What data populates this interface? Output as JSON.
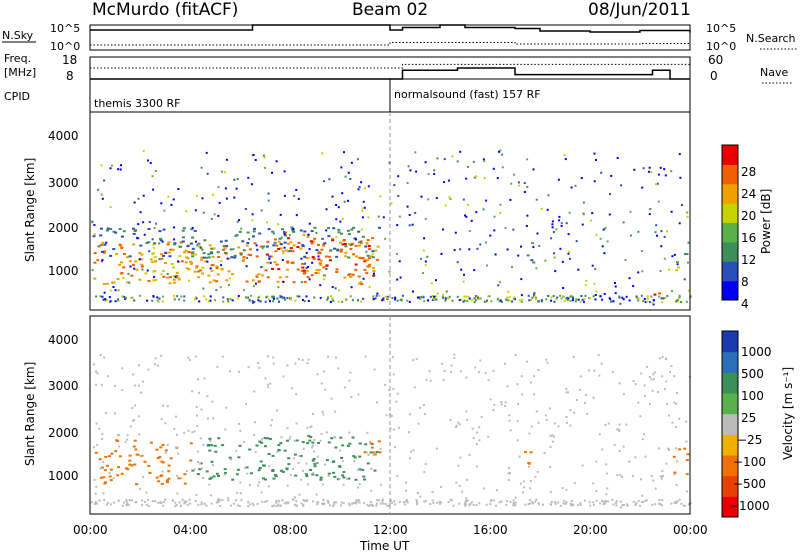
{
  "header": {
    "station": "McMurdo (fitACF)",
    "beam": "Beam 02",
    "date": "08/Jun/2011"
  },
  "top_panels": {
    "nsky_label": "N.Sky",
    "nsky_ticks": [
      "10^5",
      "10^0"
    ],
    "nsearch_label": "N.Search",
    "nsearch_ticks": [
      "10^5",
      "10^0"
    ],
    "freq_label_1": "Freq.",
    "freq_label_2": "[MHz]",
    "freq_ticks": [
      "18",
      "8"
    ],
    "nave_label": "Nave",
    "nave_ticks": [
      "60",
      "0"
    ],
    "cpid_label": "CPID",
    "cpid_modes": [
      {
        "label": "themis 3300 RF",
        "start_hour": 0
      },
      {
        "label": "normalsound (fast) 157 RF",
        "start_hour": 12
      }
    ]
  },
  "axes": {
    "ylabel": "Slant Range [km]",
    "yticks": [
      "4000",
      "3000",
      "2000",
      "1000"
    ],
    "xticks": [
      "00:00",
      "04:00",
      "08:00",
      "12:00",
      "16:00",
      "20:00",
      "00:00"
    ],
    "xlabel": "Time UT"
  },
  "colorbars": {
    "power": {
      "label": "Power [dB]",
      "ticks": [
        "28",
        "24",
        "20",
        "16",
        "12",
        "8",
        "4"
      ],
      "colors": [
        "#0000ee",
        "#2a4fb8",
        "#3d8f5a",
        "#5ab04a",
        "#c8d200",
        "#f0a000",
        "#f06000",
        "#e80000"
      ]
    },
    "velocity": {
      "label": "Velocity [m s⁻¹]",
      "ticks": [
        "1000",
        "500",
        "100",
        "25",
        "−25",
        "−100",
        "−500",
        "−1000"
      ],
      "colors": [
        "#1a3ab0",
        "#2a6fb8",
        "#3d8f5a",
        "#5ab04a",
        "#bbbbbb",
        "#f0b000",
        "#f07000",
        "#e84000",
        "#e80000"
      ]
    }
  },
  "chart_data": [
    {
      "type": "line",
      "title": "N.Sky / N.Search",
      "x": [
        0,
        6.4,
        6.5,
        12,
        12.5,
        14,
        15,
        17,
        18,
        20,
        22,
        24
      ],
      "series": [
        {
          "name": "N.Sky",
          "values": [
            4.0,
            4.0,
            5.0,
            4.0,
            4.5,
            5.0,
            4.5,
            4.3,
            3.8,
            3.6,
            3.9,
            3.5
          ]
        },
        {
          "name": "N.Search",
          "values": [
            1.0,
            1.0,
            1.0,
            1.5,
            1.5,
            1.5,
            1.5,
            1.2,
            1.2,
            1.2,
            1.3,
            1.2
          ]
        }
      ]
    },
    {
      "type": "line",
      "title": "Freq. / Nave",
      "x": [
        0,
        12,
        12.5,
        14.7,
        16.8,
        17,
        19,
        22.5,
        23.2,
        24
      ],
      "series": [
        {
          "name": "Freq. [MHz]",
          "values": [
            8,
            8,
            12,
            13,
            13,
            10,
            10,
            12,
            8,
            8
          ]
        },
        {
          "name": "Nave",
          "values": [
            30,
            30,
            40,
            40,
            40,
            40,
            40,
            40,
            40,
            40
          ]
        }
      ]
    },
    {
      "type": "heatmap",
      "title": "Power [dB]",
      "blobs": [
        {
          "t0": 0.1,
          "t1": 11.6,
          "r0": 600,
          "r1": 1600,
          "value": 24
        },
        {
          "t0": 2.0,
          "t1": 4.5,
          "r0": 700,
          "r1": 1500,
          "value": 20
        },
        {
          "t0": 7.0,
          "t1": 11.5,
          "r0": 800,
          "r1": 1800,
          "value": 26
        },
        {
          "t0": 0.1,
          "t1": 11.6,
          "r0": 1200,
          "r1": 1900,
          "value": 8
        },
        {
          "t0": 17.3,
          "t1": 17.7,
          "r0": 1000,
          "r1": 1600,
          "value": 10
        },
        {
          "t0": 23.4,
          "t1": 23.9,
          "r0": 900,
          "r1": 1500,
          "value": 14
        },
        {
          "t0": 22.5,
          "t1": 22.8,
          "r0": 200,
          "r1": 500,
          "value": 28
        }
      ]
    },
    {
      "type": "heatmap",
      "title": "Velocity [m s^-1]",
      "blobs": [
        {
          "t0": 0.1,
          "t1": 4.0,
          "r0": 700,
          "r1": 1700,
          "value": -200
        },
        {
          "t0": 4.0,
          "t1": 11.5,
          "r0": 800,
          "r1": 1800,
          "value": 200
        },
        {
          "t0": 10.8,
          "t1": 11.6,
          "r0": 1300,
          "r1": 1800,
          "value": -300
        },
        {
          "t0": 17.2,
          "t1": 17.7,
          "r0": 1000,
          "r1": 1500,
          "value": -300
        },
        {
          "t0": 23.3,
          "t1": 23.9,
          "r0": 900,
          "r1": 1600,
          "value": -200
        }
      ]
    }
  ]
}
